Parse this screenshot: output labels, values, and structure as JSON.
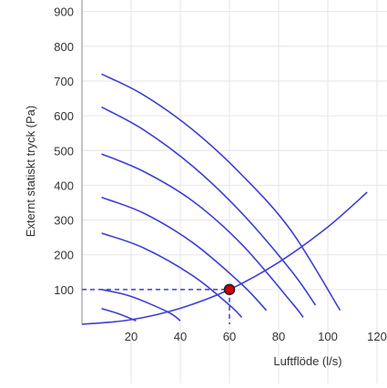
{
  "chart_data": {
    "type": "line",
    "title": "",
    "xlabel": "Luftflöde (l/s)",
    "ylabel": "Externt statiskt tryck (Pa)",
    "xlim": [
      0,
      120
    ],
    "ylim": [
      0,
      900
    ],
    "x_ticks": [
      20,
      40,
      60,
      80,
      100,
      120
    ],
    "x_tick_labels": [
      "20",
      "40",
      "60",
      "80",
      "100",
      "120"
    ],
    "y_ticks": [
      100,
      200,
      300,
      400,
      500,
      600,
      700,
      800,
      900
    ],
    "y_tick_labels": [
      "100",
      "200",
      "300",
      "400",
      "500",
      "600",
      "700",
      "800",
      "900"
    ],
    "grid": true,
    "legend": "none",
    "colors": {
      "curve": "#3f3fd4",
      "grid": "#e6e6e6",
      "axis": "#888888",
      "point_fill": "#cc0000",
      "point_stroke": "#222222"
    },
    "series": [
      {
        "values": [
          [
            8,
            720
          ],
          [
            25,
            660
          ],
          [
            45,
            560
          ],
          [
            65,
            430
          ],
          [
            85,
            270
          ],
          [
            105,
            40
          ]
        ]
      },
      {
        "values": [
          [
            8,
            625
          ],
          [
            25,
            560
          ],
          [
            45,
            455
          ],
          [
            65,
            320
          ],
          [
            85,
            155
          ],
          [
            95,
            55
          ]
        ]
      },
      {
        "values": [
          [
            8,
            490
          ],
          [
            25,
            440
          ],
          [
            45,
            355
          ],
          [
            65,
            230
          ],
          [
            85,
            65
          ],
          [
            90,
            20
          ]
        ]
      },
      {
        "values": [
          [
            8,
            365
          ],
          [
            25,
            320
          ],
          [
            45,
            235
          ],
          [
            65,
            115
          ],
          [
            75,
            40
          ]
        ]
      },
      {
        "values": [
          [
            8,
            262
          ],
          [
            25,
            220
          ],
          [
            45,
            140
          ],
          [
            60,
            55
          ],
          [
            65,
            20
          ]
        ]
      },
      {
        "values": [
          [
            8,
            100
          ],
          [
            20,
            80
          ],
          [
            35,
            35
          ],
          [
            40,
            10
          ]
        ]
      },
      {
        "values": [
          [
            8,
            45
          ],
          [
            15,
            30
          ],
          [
            22,
            10
          ]
        ]
      },
      {
        "values": [
          [
            0,
            0
          ],
          [
            20,
            13
          ],
          [
            40,
            46
          ],
          [
            60,
            100
          ],
          [
            80,
            178
          ],
          [
            100,
            280
          ],
          [
            116,
            380
          ]
        ]
      }
    ],
    "operating_point": {
      "x": 60,
      "y": 100
    }
  }
}
